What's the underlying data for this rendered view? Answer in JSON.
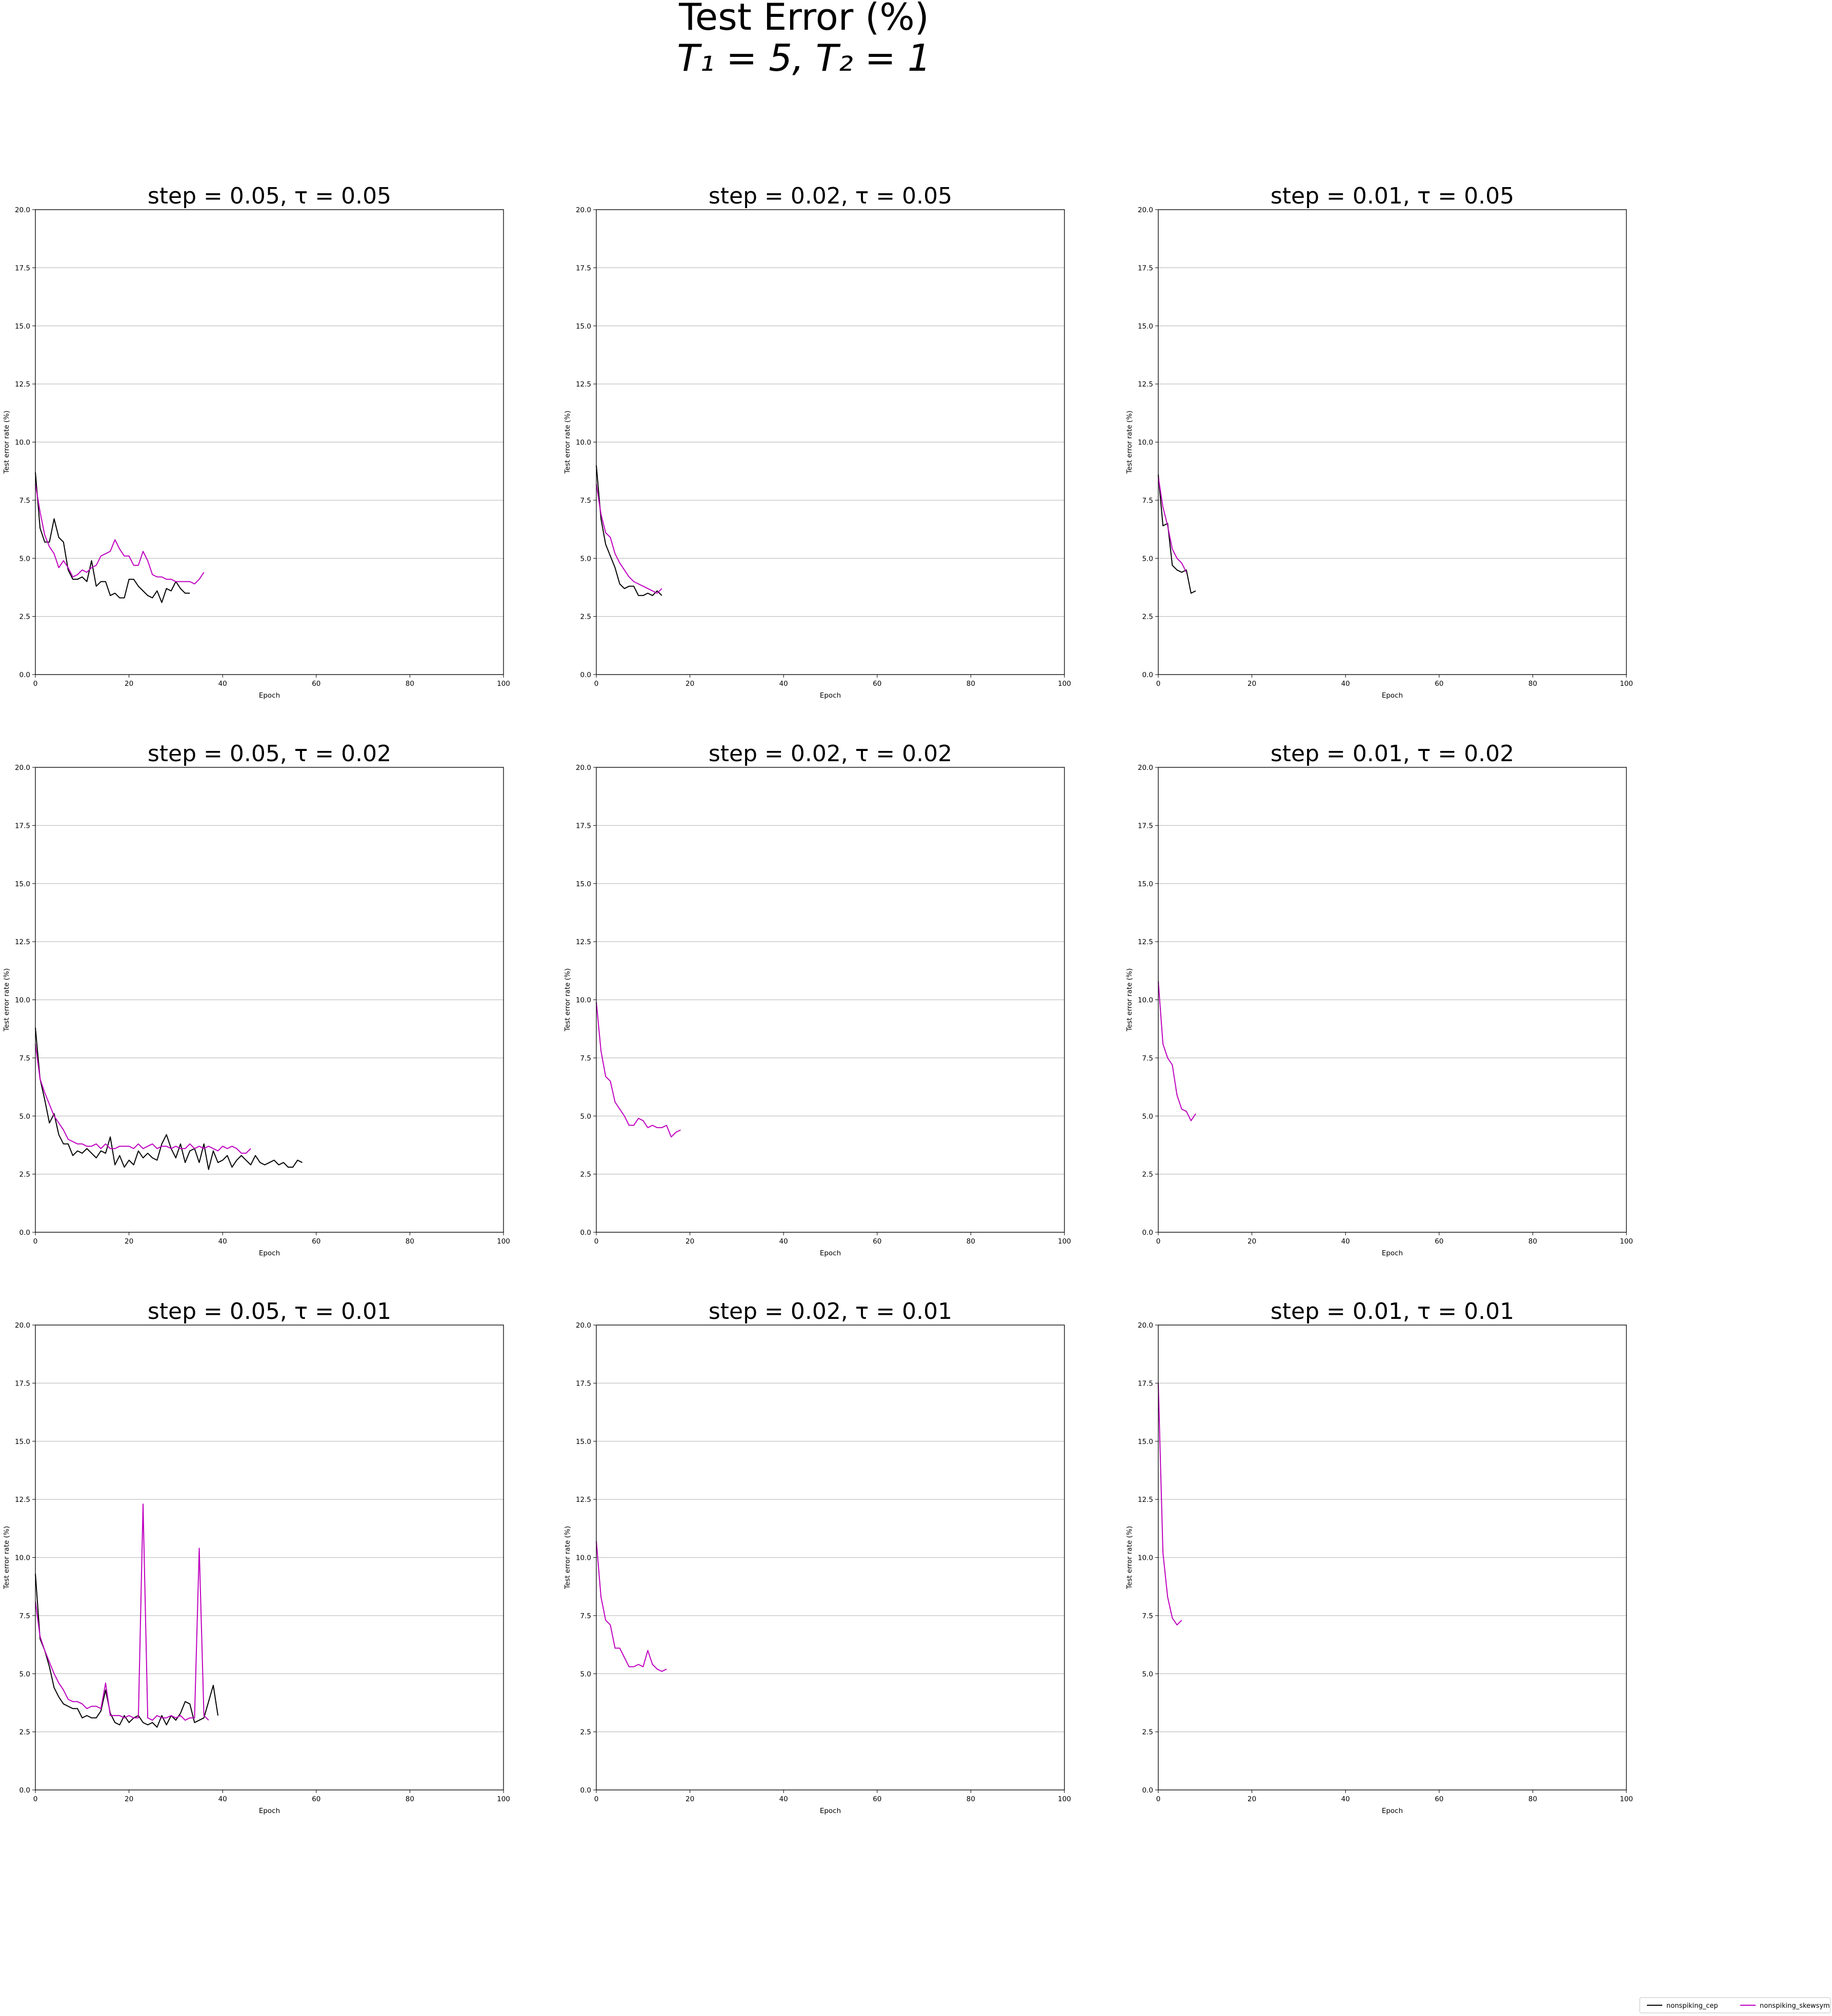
{
  "suptitle": {
    "line1": "Test Error (%)",
    "line2_math": "T₁ = 5, T₂ = 1"
  },
  "legend": {
    "placement": "bottom-right",
    "entries": [
      {
        "label": "nonspiking_cep",
        "color": "#000000"
      },
      {
        "label": "nonspiking_skewsym",
        "color": "#bf00bf"
      }
    ]
  },
  "colors": {
    "nonspiking_cep": "#000000",
    "nonspiking_skewsym": "#bf00bf",
    "grid": "#c0c0c0"
  },
  "chart_data": [
    {
      "type": "line",
      "title": "step = 0.05, τ = 0.05",
      "xlabel": "Epoch",
      "ylabel": "Test error rate (%)",
      "xlim": [
        0,
        100
      ],
      "ylim": [
        0,
        20
      ],
      "xticks": [
        "0",
        "20",
        "40",
        "60",
        "80",
        "100"
      ],
      "yticks": [
        "0.0",
        "2.5",
        "5.0",
        "7.5",
        "10.0",
        "12.5",
        "15.0",
        "17.5",
        "20.0"
      ],
      "grid": "y",
      "series": [
        {
          "name": "nonspiking_cep",
          "color": "#000000",
          "x": [
            0,
            1,
            2,
            3,
            4,
            5,
            6,
            7,
            8,
            9,
            10,
            11,
            12,
            13,
            14,
            15,
            16,
            17,
            18,
            19,
            20,
            21,
            22,
            23,
            24,
            25,
            26,
            27,
            28,
            29,
            30,
            31,
            32,
            33
          ],
          "y": [
            8.7,
            6.3,
            5.7,
            5.7,
            6.7,
            5.9,
            5.7,
            4.5,
            4.1,
            4.1,
            4.2,
            4.0,
            4.9,
            3.8,
            4.0,
            4.0,
            3.4,
            3.5,
            3.3,
            3.3,
            4.1,
            4.1,
            3.8,
            3.6,
            3.4,
            3.3,
            3.6,
            3.1,
            3.7,
            3.6,
            4.0,
            3.7,
            3.5,
            3.5
          ]
        },
        {
          "name": "nonspiking_skewsym",
          "color": "#bf00bf",
          "x": [
            0,
            1,
            2,
            3,
            4,
            5,
            6,
            7,
            8,
            9,
            10,
            11,
            12,
            13,
            14,
            15,
            16,
            17,
            18,
            19,
            20,
            21,
            22,
            23,
            24,
            25,
            26,
            27,
            28,
            29,
            30,
            31,
            32,
            33,
            34,
            35,
            36
          ],
          "y": [
            8.2,
            7.0,
            6.0,
            5.5,
            5.2,
            4.6,
            4.9,
            4.6,
            4.2,
            4.3,
            4.5,
            4.4,
            4.6,
            4.7,
            5.1,
            5.2,
            5.3,
            5.8,
            5.4,
            5.1,
            5.1,
            4.7,
            4.7,
            5.3,
            4.9,
            4.3,
            4.2,
            4.2,
            4.1,
            4.1,
            4.0,
            4.0,
            4.0,
            4.0,
            3.9,
            4.1,
            4.4
          ]
        }
      ]
    },
    {
      "type": "line",
      "title": "step = 0.02, τ = 0.05",
      "xlabel": "Epoch",
      "ylabel": "Test error rate (%)",
      "xlim": [
        0,
        100
      ],
      "ylim": [
        0,
        20
      ],
      "xticks": [
        "0",
        "20",
        "40",
        "60",
        "80",
        "100"
      ],
      "yticks": [
        "0.0",
        "2.5",
        "5.0",
        "7.5",
        "10.0",
        "12.5",
        "15.0",
        "17.5",
        "20.0"
      ],
      "grid": "y",
      "series": [
        {
          "name": "nonspiking_cep",
          "color": "#000000",
          "x": [
            0,
            1,
            2,
            3,
            4,
            5,
            6,
            7,
            8,
            9,
            10,
            11,
            12,
            13,
            14
          ],
          "y": [
            9.0,
            6.7,
            5.6,
            5.1,
            4.6,
            3.9,
            3.7,
            3.8,
            3.8,
            3.4,
            3.4,
            3.5,
            3.4,
            3.6,
            3.4
          ]
        },
        {
          "name": "nonspiking_skewsym",
          "color": "#bf00bf",
          "x": [
            0,
            1,
            2,
            3,
            4,
            5,
            6,
            7,
            8,
            9,
            10,
            11,
            12,
            13,
            14
          ],
          "y": [
            8.2,
            6.9,
            6.1,
            5.9,
            5.2,
            4.8,
            4.5,
            4.2,
            4.0,
            3.9,
            3.8,
            3.7,
            3.6,
            3.5,
            3.7
          ]
        }
      ]
    },
    {
      "type": "line",
      "title": "step = 0.01, τ = 0.05",
      "xlabel": "Epoch",
      "ylabel": "Test error rate (%)",
      "xlim": [
        0,
        100
      ],
      "ylim": [
        0,
        20
      ],
      "xticks": [
        "0",
        "20",
        "40",
        "60",
        "80",
        "100"
      ],
      "yticks": [
        "0.0",
        "2.5",
        "5.0",
        "7.5",
        "10.0",
        "12.5",
        "15.0",
        "17.5",
        "20.0"
      ],
      "grid": "y",
      "series": [
        {
          "name": "nonspiking_cep",
          "color": "#000000",
          "x": [
            0,
            1,
            2,
            3,
            4,
            5,
            6,
            7,
            8
          ],
          "y": [
            8.6,
            6.4,
            6.5,
            4.7,
            4.5,
            4.4,
            4.5,
            3.5,
            3.6
          ]
        },
        {
          "name": "nonspiking_skewsym",
          "color": "#bf00bf",
          "x": [
            0,
            1,
            2,
            3,
            4,
            5,
            6
          ],
          "y": [
            8.5,
            7.2,
            6.4,
            5.4,
            5.0,
            4.8,
            4.4
          ]
        }
      ]
    },
    {
      "type": "line",
      "title": "step = 0.05, τ = 0.02",
      "xlabel": "Epoch",
      "ylabel": "Test error rate (%)",
      "xlim": [
        0,
        100
      ],
      "ylim": [
        0,
        20
      ],
      "xticks": [
        "0",
        "20",
        "40",
        "60",
        "80",
        "100"
      ],
      "yticks": [
        "0.0",
        "2.5",
        "5.0",
        "7.5",
        "10.0",
        "12.5",
        "15.0",
        "17.5",
        "20.0"
      ],
      "grid": "y",
      "series": [
        {
          "name": "nonspiking_cep",
          "color": "#000000",
          "x": [
            0,
            1,
            2,
            3,
            4,
            5,
            6,
            7,
            8,
            9,
            10,
            11,
            12,
            13,
            14,
            15,
            16,
            17,
            18,
            19,
            20,
            21,
            22,
            23,
            24,
            25,
            26,
            27,
            28,
            29,
            30,
            31,
            32,
            33,
            34,
            35,
            36,
            37,
            38,
            39,
            40,
            41,
            42,
            43,
            44,
            45,
            46,
            47,
            48,
            49,
            50,
            51,
            52,
            53,
            54,
            55,
            56,
            57
          ],
          "y": [
            8.8,
            6.6,
            5.7,
            4.7,
            5.1,
            4.2,
            3.8,
            3.8,
            3.3,
            3.5,
            3.4,
            3.6,
            3.4,
            3.2,
            3.5,
            3.4,
            4.1,
            2.9,
            3.3,
            2.8,
            3.1,
            2.9,
            3.5,
            3.2,
            3.4,
            3.2,
            3.1,
            3.8,
            4.2,
            3.6,
            3.2,
            3.8,
            3.0,
            3.5,
            3.6,
            3.0,
            3.8,
            2.7,
            3.5,
            3.0,
            3.1,
            3.3,
            2.8,
            3.1,
            3.3,
            3.1,
            2.9,
            3.3,
            3.0,
            2.9,
            3.0,
            3.1,
            2.9,
            3.0,
            2.8,
            2.8,
            3.1,
            3.0
          ]
        },
        {
          "name": "nonspiking_skewsym",
          "color": "#bf00bf",
          "x": [
            0,
            1,
            2,
            3,
            4,
            5,
            6,
            7,
            8,
            9,
            10,
            11,
            12,
            13,
            14,
            15,
            16,
            17,
            18,
            19,
            20,
            21,
            22,
            23,
            24,
            25,
            26,
            27,
            28,
            29,
            30,
            31,
            32,
            33,
            34,
            35,
            36,
            37,
            38,
            39,
            40,
            41,
            42,
            43,
            44,
            45,
            46
          ],
          "y": [
            8.1,
            6.6,
            6.0,
            5.5,
            5.0,
            4.7,
            4.4,
            4.0,
            3.9,
            3.8,
            3.8,
            3.7,
            3.7,
            3.8,
            3.6,
            3.8,
            3.6,
            3.6,
            3.7,
            3.7,
            3.7,
            3.6,
            3.8,
            3.6,
            3.7,
            3.8,
            3.6,
            3.7,
            3.7,
            3.6,
            3.7,
            3.6,
            3.6,
            3.8,
            3.6,
            3.7,
            3.6,
            3.7,
            3.6,
            3.5,
            3.7,
            3.6,
            3.7,
            3.6,
            3.4,
            3.4,
            3.6
          ]
        }
      ]
    },
    {
      "type": "line",
      "title": "step = 0.02, τ = 0.02",
      "xlabel": "Epoch",
      "ylabel": "Test error rate (%)",
      "xlim": [
        0,
        100
      ],
      "ylim": [
        0,
        20
      ],
      "xticks": [
        "0",
        "20",
        "40",
        "60",
        "80",
        "100"
      ],
      "yticks": [
        "0.0",
        "2.5",
        "5.0",
        "7.5",
        "10.0",
        "12.5",
        "15.0",
        "17.5",
        "20.0"
      ],
      "grid": "y",
      "series": [
        {
          "name": "nonspiking_skewsym",
          "color": "#bf00bf",
          "x": [
            0,
            1,
            2,
            3,
            4,
            5,
            6,
            7,
            8,
            9,
            10,
            11,
            12,
            13,
            14,
            15,
            16,
            17,
            18
          ],
          "y": [
            9.9,
            7.8,
            6.7,
            6.5,
            5.6,
            5.3,
            5.0,
            4.6,
            4.6,
            4.9,
            4.8,
            4.5,
            4.6,
            4.5,
            4.5,
            4.6,
            4.1,
            4.3,
            4.4
          ]
        }
      ]
    },
    {
      "type": "line",
      "title": "step = 0.01, τ = 0.02",
      "xlabel": "Epoch",
      "ylabel": "Test error rate (%)",
      "xlim": [
        0,
        100
      ],
      "ylim": [
        0,
        20
      ],
      "xticks": [
        "0",
        "20",
        "40",
        "60",
        "80",
        "100"
      ],
      "yticks": [
        "0.0",
        "2.5",
        "5.0",
        "7.5",
        "10.0",
        "12.5",
        "15.0",
        "17.5",
        "20.0"
      ],
      "grid": "y",
      "series": [
        {
          "name": "nonspiking_skewsym",
          "color": "#bf00bf",
          "x": [
            0,
            1,
            2,
            3,
            4,
            5,
            6,
            7,
            8
          ],
          "y": [
            10.8,
            8.1,
            7.5,
            7.2,
            5.9,
            5.3,
            5.2,
            4.8,
            5.1
          ]
        }
      ]
    },
    {
      "type": "line",
      "title": "step = 0.05, τ = 0.01",
      "xlabel": "Epoch",
      "ylabel": "Test error rate (%)",
      "xlim": [
        0,
        100
      ],
      "ylim": [
        0,
        20
      ],
      "xticks": [
        "0",
        "20",
        "40",
        "60",
        "80",
        "100"
      ],
      "yticks": [
        "0.0",
        "2.5",
        "5.0",
        "7.5",
        "10.0",
        "12.5",
        "15.0",
        "17.5",
        "20.0"
      ],
      "grid": "y",
      "series": [
        {
          "name": "nonspiking_cep",
          "color": "#000000",
          "x": [
            0,
            1,
            2,
            3,
            4,
            5,
            6,
            7,
            8,
            9,
            10,
            11,
            12,
            13,
            14,
            15,
            16,
            17,
            18,
            19,
            20,
            21,
            22,
            23,
            24,
            25,
            26,
            27,
            28,
            29,
            30,
            31,
            32,
            33,
            34,
            35,
            36,
            37,
            38,
            39
          ],
          "y": [
            9.3,
            6.5,
            6.0,
            5.3,
            4.4,
            4.0,
            3.7,
            3.6,
            3.5,
            3.5,
            3.1,
            3.2,
            3.1,
            3.1,
            3.4,
            4.3,
            3.3,
            2.9,
            2.8,
            3.2,
            2.9,
            3.1,
            3.2,
            2.9,
            2.8,
            2.9,
            2.7,
            3.2,
            2.8,
            3.2,
            3.0,
            3.3,
            3.8,
            3.7,
            2.9,
            3.0,
            3.1,
            3.8,
            4.5,
            3.2
          ]
        },
        {
          "name": "nonspiking_skewsym",
          "color": "#bf00bf",
          "x": [
            0,
            1,
            2,
            3,
            4,
            5,
            6,
            7,
            8,
            9,
            10,
            11,
            12,
            13,
            14,
            15,
            16,
            17,
            18,
            19,
            20,
            21,
            22,
            23,
            24,
            25,
            26,
            27,
            28,
            29,
            30,
            31,
            32,
            33,
            34,
            35,
            36,
            37
          ],
          "y": [
            8.1,
            6.6,
            6.0,
            5.5,
            5.0,
            4.6,
            4.3,
            3.9,
            3.8,
            3.8,
            3.7,
            3.5,
            3.6,
            3.6,
            3.5,
            4.6,
            3.2,
            3.2,
            3.2,
            3.1,
            3.2,
            3.1,
            3.1,
            12.3,
            3.1,
            3.0,
            3.2,
            3.1,
            3.1,
            3.2,
            3.1,
            3.2,
            3.0,
            3.1,
            3.1,
            10.4,
            3.2,
            3.0
          ]
        }
      ]
    },
    {
      "type": "line",
      "title": "step = 0.02, τ = 0.01",
      "xlabel": "Epoch",
      "ylabel": "Test error rate (%)",
      "xlim": [
        0,
        100
      ],
      "ylim": [
        0,
        20
      ],
      "xticks": [
        "0",
        "20",
        "40",
        "60",
        "80",
        "100"
      ],
      "yticks": [
        "0.0",
        "2.5",
        "5.0",
        "7.5",
        "10.0",
        "12.5",
        "15.0",
        "17.5",
        "20.0"
      ],
      "grid": "y",
      "series": [
        {
          "name": "nonspiking_skewsym",
          "color": "#bf00bf",
          "x": [
            0,
            1,
            2,
            3,
            4,
            5,
            6,
            7,
            8,
            9,
            10,
            11,
            12,
            13,
            14,
            15
          ],
          "y": [
            10.7,
            8.3,
            7.3,
            7.1,
            6.1,
            6.1,
            5.7,
            5.3,
            5.3,
            5.4,
            5.3,
            6.0,
            5.4,
            5.2,
            5.1,
            5.2
          ]
        }
      ]
    },
    {
      "type": "line",
      "title": "step = 0.01, τ = 0.01",
      "xlabel": "Epoch",
      "ylabel": "Test error rate (%)",
      "xlim": [
        0,
        100
      ],
      "ylim": [
        0,
        20
      ],
      "xticks": [
        "0",
        "20",
        "40",
        "60",
        "80",
        "100"
      ],
      "yticks": [
        "0.0",
        "2.5",
        "5.0",
        "7.5",
        "10.0",
        "12.5",
        "15.0",
        "17.5",
        "20.0"
      ],
      "grid": "y",
      "series": [
        {
          "name": "nonspiking_skewsym",
          "color": "#bf00bf",
          "x": [
            0,
            1,
            2,
            3,
            4,
            5
          ],
          "y": [
            17.5,
            10.2,
            8.3,
            7.4,
            7.1,
            7.3
          ]
        }
      ]
    }
  ]
}
